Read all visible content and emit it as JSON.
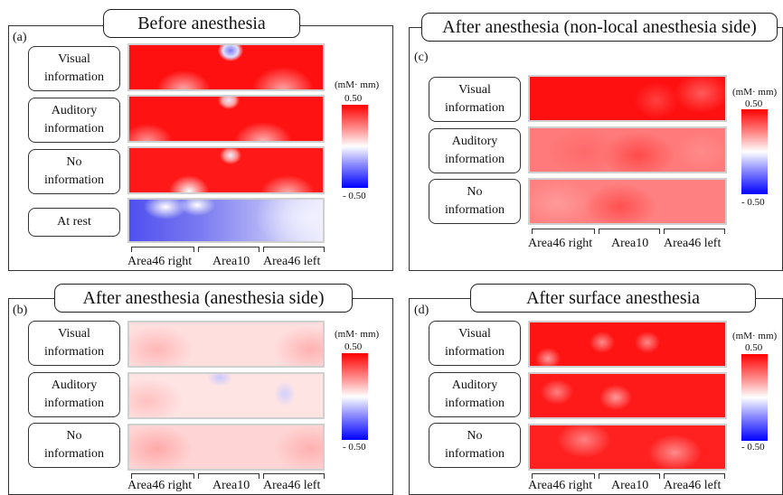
{
  "colorbar": {
    "unit": "(mM· mm)",
    "max": "0.50",
    "min": "- 0.50",
    "max_color": "#ff0000",
    "mid_color": "#ffffff",
    "min_color": "#0000ff"
  },
  "areas": [
    "Area46 right",
    "Area10",
    "Area46 left"
  ],
  "panels": [
    {
      "id": "a",
      "letter": "(a)",
      "title": "Before anesthesia",
      "rows": [
        {
          "label": "Visual\ninformation",
          "level": "strong-red"
        },
        {
          "label": "Auditory\ninformation",
          "level": "strong-red"
        },
        {
          "label": "No\ninformation",
          "level": "strong-red"
        },
        {
          "label": "At rest",
          "level": "blue"
        }
      ]
    },
    {
      "id": "c",
      "letter": "(c)",
      "title": "After anesthesia (non-local anesthesia side)",
      "rows": [
        {
          "label": "Visual\ninformation",
          "level": "strong-red"
        },
        {
          "label": "Auditory\ninformation",
          "level": "medium-red"
        },
        {
          "label": "No\ninformation",
          "level": "medium-red"
        }
      ]
    },
    {
      "id": "b",
      "letter": "(b)",
      "title": "After anesthesia (anesthesia side)",
      "rows": [
        {
          "label": "Visual\ninformation",
          "level": "light-red"
        },
        {
          "label": "Auditory\ninformation",
          "level": "very-light-red"
        },
        {
          "label": "No\ninformation",
          "level": "light-red"
        }
      ]
    },
    {
      "id": "d",
      "letter": "(d)",
      "title": "After surface anesthesia",
      "rows": [
        {
          "label": "Visual\ninformation",
          "level": "strong-red"
        },
        {
          "label": "Auditory\ninformation",
          "level": "strong-red"
        },
        {
          "label": "No\ninformation",
          "level": "strong-red"
        }
      ]
    }
  ]
}
